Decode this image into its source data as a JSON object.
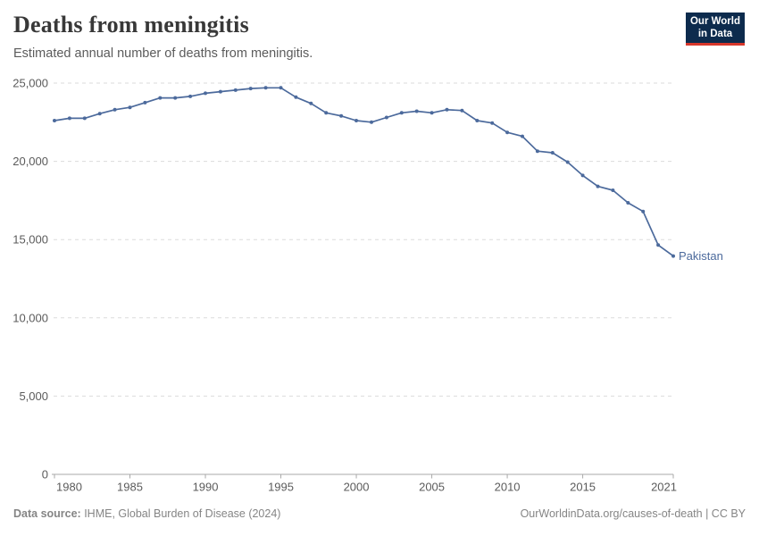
{
  "header": {
    "title": "Deaths from meningitis",
    "subtitle": "Estimated annual number of deaths from meningitis."
  },
  "logo": {
    "line1": "Our World",
    "line2": "in Data",
    "bg_color": "#0d2b4d",
    "accent_color": "#d7372b"
  },
  "footer": {
    "source_label": "Data source:",
    "source_text": " IHME, Global Burden of Disease (2024)",
    "citation": "OurWorldinData.org/causes-of-death | CC BY"
  },
  "chart_data": {
    "type": "line",
    "title": "Deaths from meningitis",
    "subtitle": "Estimated annual number of deaths from meningitis.",
    "xlabel": "",
    "ylabel": "",
    "xlim": [
      1980,
      2021
    ],
    "ylim": [
      0,
      25000
    ],
    "grid": "horizontal-dashed",
    "legend_position": "end-of-line-label",
    "xtick_values": [
      1980,
      1985,
      1990,
      1995,
      2000,
      2005,
      2010,
      2015,
      2021
    ],
    "xtick_labels": [
      "1980",
      "1985",
      "1990",
      "1995",
      "2000",
      "2005",
      "2010",
      "2015",
      "2021"
    ],
    "ytick_values": [
      0,
      5000,
      10000,
      15000,
      20000,
      25000
    ],
    "ytick_labels": [
      "0",
      "5,000",
      "10,000",
      "15,000",
      "20,000",
      "25,000"
    ],
    "series": [
      {
        "name": "Pakistan",
        "color": "#4C6A9C",
        "x": [
          1980,
          1981,
          1982,
          1983,
          1984,
          1985,
          1986,
          1987,
          1988,
          1989,
          1990,
          1991,
          1992,
          1993,
          1994,
          1995,
          1996,
          1997,
          1998,
          1999,
          2000,
          2001,
          2002,
          2003,
          2004,
          2005,
          2006,
          2007,
          2008,
          2009,
          2010,
          2011,
          2012,
          2013,
          2014,
          2015,
          2016,
          2017,
          2018,
          2019,
          2020,
          2021
        ],
        "y": [
          22600,
          22750,
          22750,
          23050,
          23300,
          23450,
          23750,
          24050,
          24050,
          24150,
          24350,
          24450,
          24550,
          24650,
          24700,
          24700,
          24100,
          23700,
          23100,
          22900,
          22600,
          22500,
          22800,
          23100,
          23200,
          23100,
          23300,
          23250,
          22600,
          22450,
          21850,
          21600,
          20650,
          20550,
          19950,
          19100,
          18400,
          18150,
          17350,
          16800,
          14650,
          13950
        ]
      }
    ],
    "colors": {
      "gridline": "#dbdbdb",
      "axis": "#a8a8a8",
      "tick_text": "#5b5b5b",
      "end_label": "#4C6A9C"
    }
  }
}
